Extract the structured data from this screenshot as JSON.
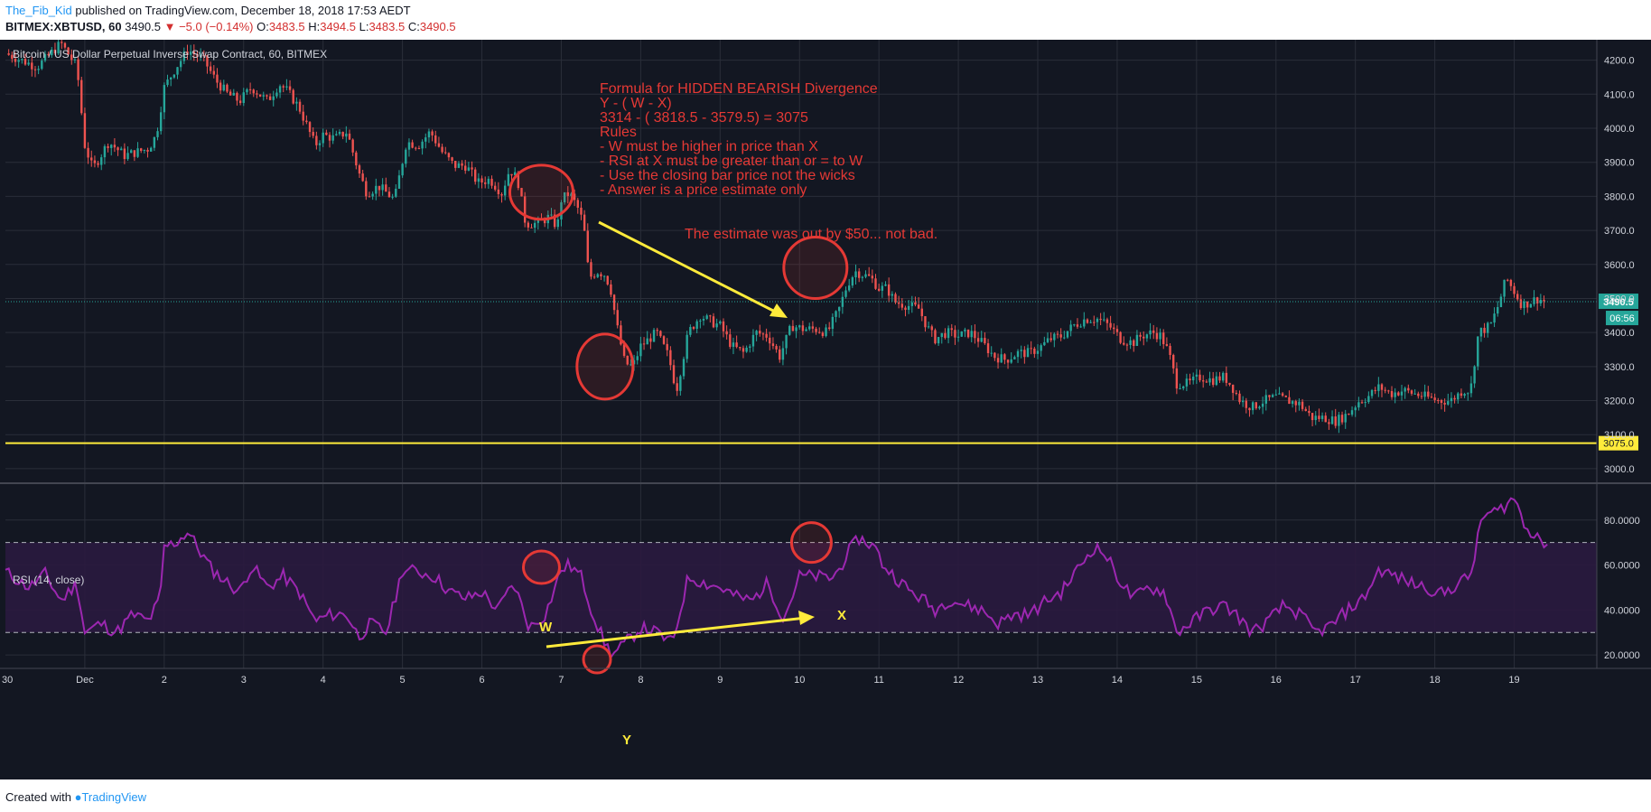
{
  "header": {
    "author": "The_Fib_Kid",
    "published_text": "published on TradingView.com, December 18, 2018 17:53 AEDT",
    "symbol_line": "BITMEX:XBTUSD, 60",
    "last": "3490.5",
    "change": "▼ −5.0 (−0.14%)",
    "o_label": "O:",
    "o_value": "3483.5",
    "h_label": "H:",
    "h_value": "3494.5",
    "l_label": "L:",
    "l_value": "3483.5",
    "c_label": "C:",
    "c_value": "3490.5"
  },
  "footer": {
    "created_with": "Created with",
    "logo_text": "TradingView"
  },
  "colors": {
    "background": "#131722",
    "up": "#26a69a",
    "down": "#ef5350",
    "rsi_line": "#9c27b0",
    "rsi_band": "#2a1a3f",
    "annotation": "#e53935",
    "arrow": "#ffeb3b",
    "support": "#ffeb3b"
  },
  "chart_data": [
    {
      "type": "candlestick",
      "title": "Bitcoin / US Dollar Perpetual Inverse Swap Contract, 60, BITMEX",
      "ylim": [
        2960,
        4260
      ],
      "y_ticks": [
        3000,
        3100,
        3200,
        3300,
        3400,
        3500,
        3600,
        3700,
        3800,
        3900,
        4000,
        4100,
        4200
      ],
      "y_tick_labels": [
        "3000.0",
        "3100.0",
        "3200.0",
        "3300.0",
        "3400.0",
        "3500.0",
        "3600.0",
        "3700.0",
        "3800.0",
        "3900.0",
        "4000.0",
        "4100.0",
        "4200.0"
      ],
      "x_range_days": [
        0,
        20
      ],
      "x_ticks": [
        {
          "day": 1,
          "label": "Dec"
        },
        {
          "day": 2,
          "label": "2"
        },
        {
          "day": 3,
          "label": "3"
        },
        {
          "day": 4,
          "label": "4"
        },
        {
          "day": 5,
          "label": "5"
        },
        {
          "day": 6,
          "label": "6"
        },
        {
          "day": 7,
          "label": "7"
        },
        {
          "day": 8,
          "label": "8"
        },
        {
          "day": 9,
          "label": "9"
        },
        {
          "day": 10,
          "label": "10"
        },
        {
          "day": 11,
          "label": "11"
        },
        {
          "day": 12,
          "label": "12"
        },
        {
          "day": 13,
          "label": "13"
        },
        {
          "day": 14,
          "label": "14"
        },
        {
          "day": 15,
          "label": "15"
        },
        {
          "day": 16,
          "label": "16"
        },
        {
          "day": 17,
          "label": "17"
        },
        {
          "day": 18,
          "label": "18"
        },
        {
          "day": 19,
          "label": "19"
        }
      ],
      "first_tick_label": "30",
      "close_path": [
        [
          0.0,
          4220
        ],
        [
          0.4,
          4180
        ],
        [
          0.7,
          4250
        ],
        [
          0.9,
          4180
        ],
        [
          1.0,
          3950
        ],
        [
          1.1,
          3880
        ],
        [
          1.3,
          3960
        ],
        [
          1.5,
          3920
        ],
        [
          1.8,
          3940
        ],
        [
          1.9,
          3980
        ],
        [
          2.0,
          4120
        ],
        [
          2.15,
          4180
        ],
        [
          2.3,
          4230
        ],
        [
          2.5,
          4200
        ],
        [
          2.65,
          4140
        ],
        [
          2.8,
          4100
        ],
        [
          2.95,
          4080
        ],
        [
          3.1,
          4120
        ],
        [
          3.3,
          4080
        ],
        [
          3.45,
          4130
        ],
        [
          3.55,
          4110
        ],
        [
          3.7,
          4060
        ],
        [
          3.9,
          3950
        ],
        [
          4.0,
          3980
        ],
        [
          4.15,
          3970
        ],
        [
          4.3,
          3990
        ],
        [
          4.45,
          3870
        ],
        [
          4.55,
          3810
        ],
        [
          4.7,
          3830
        ],
        [
          4.9,
          3790
        ],
        [
          5.05,
          3960
        ],
        [
          5.2,
          3950
        ],
        [
          5.35,
          3990
        ],
        [
          5.5,
          3930
        ],
        [
          5.65,
          3890
        ],
        [
          5.8,
          3890
        ],
        [
          5.95,
          3840
        ],
        [
          6.1,
          3850
        ],
        [
          6.25,
          3810
        ],
        [
          6.35,
          3880
        ],
        [
          6.45,
          3850
        ],
        [
          6.55,
          3720
        ],
        [
          6.7,
          3720
        ],
        [
          6.85,
          3740
        ],
        [
          6.95,
          3710
        ],
        [
          7.0,
          3790
        ],
        [
          7.1,
          3810
        ],
        [
          7.2,
          3770
        ],
        [
          7.28,
          3720
        ],
        [
          7.35,
          3560
        ],
        [
          7.45,
          3580
        ],
        [
          7.55,
          3570
        ],
        [
          7.62,
          3530
        ],
        [
          7.7,
          3420
        ],
        [
          7.8,
          3310
        ],
        [
          7.9,
          3300
        ],
        [
          8.0,
          3360
        ],
        [
          8.1,
          3380
        ],
        [
          8.2,
          3400
        ],
        [
          8.35,
          3330
        ],
        [
          8.45,
          3230
        ],
        [
          8.6,
          3400
        ],
        [
          8.75,
          3450
        ],
        [
          8.9,
          3430
        ],
        [
          9.0,
          3420
        ],
        [
          9.15,
          3360
        ],
        [
          9.3,
          3340
        ],
        [
          9.45,
          3400
        ],
        [
          9.6,
          3390
        ],
        [
          9.75,
          3330
        ],
        [
          9.9,
          3420
        ],
        [
          10.05,
          3410
        ],
        [
          10.2,
          3410
        ],
        [
          10.35,
          3400
        ],
        [
          10.5,
          3470
        ],
        [
          10.6,
          3540
        ],
        [
          10.7,
          3580
        ],
        [
          10.8,
          3570
        ],
        [
          10.9,
          3560
        ],
        [
          11.0,
          3530
        ],
        [
          11.1,
          3530
        ],
        [
          11.2,
          3490
        ],
        [
          11.35,
          3480
        ],
        [
          11.5,
          3470
        ],
        [
          11.6,
          3420
        ],
        [
          11.7,
          3380
        ],
        [
          11.85,
          3400
        ],
        [
          12.0,
          3390
        ],
        [
          12.15,
          3400
        ],
        [
          12.3,
          3370
        ],
        [
          12.45,
          3330
        ],
        [
          12.6,
          3320
        ],
        [
          12.75,
          3340
        ],
        [
          12.9,
          3340
        ],
        [
          13.05,
          3360
        ],
        [
          13.15,
          3380
        ],
        [
          13.3,
          3390
        ],
        [
          13.45,
          3420
        ],
        [
          13.6,
          3440
        ],
        [
          13.75,
          3440
        ],
        [
          13.9,
          3420
        ],
        [
          14.05,
          3380
        ],
        [
          14.2,
          3370
        ],
        [
          14.3,
          3390
        ],
        [
          14.45,
          3400
        ],
        [
          14.55,
          3390
        ],
        [
          14.65,
          3340
        ],
        [
          14.75,
          3250
        ],
        [
          14.9,
          3250
        ],
        [
          15.05,
          3270
        ],
        [
          15.2,
          3260
        ],
        [
          15.35,
          3270
        ],
        [
          15.45,
          3240
        ],
        [
          15.55,
          3200
        ],
        [
          15.7,
          3180
        ],
        [
          15.85,
          3200
        ],
        [
          16.0,
          3210
        ],
        [
          16.15,
          3200
        ],
        [
          16.3,
          3190
        ],
        [
          16.45,
          3150
        ],
        [
          16.6,
          3150
        ],
        [
          16.75,
          3140
        ],
        [
          16.9,
          3160
        ],
        [
          17.05,
          3200
        ],
        [
          17.15,
          3210
        ],
        [
          17.3,
          3240
        ],
        [
          17.45,
          3220
        ],
        [
          17.6,
          3230
        ],
        [
          17.75,
          3220
        ],
        [
          17.9,
          3210
        ],
        [
          18.05,
          3200
        ],
        [
          18.2,
          3200
        ],
        [
          18.35,
          3230
        ],
        [
          18.45,
          3230
        ],
        [
          18.55,
          3400
        ],
        [
          18.7,
          3420
        ],
        [
          18.8,
          3480
        ],
        [
          18.9,
          3560
        ],
        [
          19.0,
          3520
        ],
        [
          19.1,
          3480
        ],
        [
          19.2,
          3490
        ],
        [
          19.3,
          3500
        ],
        [
          19.4,
          3490
        ]
      ],
      "last_price_label": "3490.5",
      "countdown_label": "06:56",
      "support_level": 3075,
      "support_label": "3075.0",
      "annotations": {
        "formula_lines": [
          "Formula for HIDDEN BEARISH Divergence",
          "Y - ( W - X)",
          "3314 - ( 3818.5 - 3579.5) = 3075",
          "Rules",
          "- W must be higher in price than X",
          "- RSI at X must be greater than or = to W",
          "- Use the closing bar price not the wicks",
          "- Answer is a price estimate only"
        ],
        "result_note": "The estimate was out by $50... not bad."
      }
    },
    {
      "type": "line",
      "title": "RSI (14, close)",
      "ylim": [
        14,
        96
      ],
      "y_ticks": [
        20,
        40,
        60,
        80
      ],
      "y_tick_labels": [
        "20.0000",
        "40.0000",
        "60.0000",
        "80.0000"
      ],
      "band": [
        30,
        70
      ],
      "rsi_path": [
        [
          0.0,
          57
        ],
        [
          0.3,
          50
        ],
        [
          0.5,
          56
        ],
        [
          0.7,
          44
        ],
        [
          0.9,
          52
        ],
        [
          1.0,
          30
        ],
        [
          1.2,
          34
        ],
        [
          1.4,
          30
        ],
        [
          1.6,
          38
        ],
        [
          1.8,
          35
        ],
        [
          1.95,
          45
        ],
        [
          2.0,
          68
        ],
        [
          2.15,
          70
        ],
        [
          2.3,
          75
        ],
        [
          2.45,
          66
        ],
        [
          2.6,
          58
        ],
        [
          2.8,
          52
        ],
        [
          2.95,
          48
        ],
        [
          3.1,
          60
        ],
        [
          3.3,
          50
        ],
        [
          3.5,
          55
        ],
        [
          3.7,
          48
        ],
        [
          3.9,
          35
        ],
        [
          4.1,
          38
        ],
        [
          4.3,
          38
        ],
        [
          4.45,
          28
        ],
        [
          4.6,
          34
        ],
        [
          4.8,
          30
        ],
        [
          5.0,
          58
        ],
        [
          5.2,
          57
        ],
        [
          5.4,
          55
        ],
        [
          5.6,
          48
        ],
        [
          5.8,
          45
        ],
        [
          6.0,
          48
        ],
        [
          6.2,
          40
        ],
        [
          6.4,
          52
        ],
        [
          6.6,
          32
        ],
        [
          6.8,
          38
        ],
        [
          7.0,
          58
        ],
        [
          7.1,
          60
        ],
        [
          7.25,
          55
        ],
        [
          7.4,
          38
        ],
        [
          7.55,
          25
        ],
        [
          7.65,
          20
        ],
        [
          7.8,
          25
        ],
        [
          8.0,
          32
        ],
        [
          8.2,
          30
        ],
        [
          8.4,
          25
        ],
        [
          8.6,
          55
        ],
        [
          8.8,
          52
        ],
        [
          9.0,
          50
        ],
        [
          9.2,
          46
        ],
        [
          9.4,
          44
        ],
        [
          9.6,
          52
        ],
        [
          9.8,
          36
        ],
        [
          10.0,
          55
        ],
        [
          10.2,
          55
        ],
        [
          10.4,
          54
        ],
        [
          10.5,
          58
        ],
        [
          10.6,
          65
        ],
        [
          10.75,
          72
        ],
        [
          10.85,
          70
        ],
        [
          10.95,
          68
        ],
        [
          11.05,
          60
        ],
        [
          11.2,
          55
        ],
        [
          11.4,
          48
        ],
        [
          11.55,
          45
        ],
        [
          11.7,
          40
        ],
        [
          11.9,
          45
        ],
        [
          12.1,
          42
        ],
        [
          12.3,
          40
        ],
        [
          12.5,
          34
        ],
        [
          12.7,
          38
        ],
        [
          12.9,
          38
        ],
        [
          13.1,
          44
        ],
        [
          13.3,
          48
        ],
        [
          13.5,
          58
        ],
        [
          13.7,
          68
        ],
        [
          13.85,
          65
        ],
        [
          14.0,
          55
        ],
        [
          14.2,
          45
        ],
        [
          14.4,
          50
        ],
        [
          14.6,
          48
        ],
        [
          14.75,
          30
        ],
        [
          14.95,
          35
        ],
        [
          15.15,
          40
        ],
        [
          15.35,
          42
        ],
        [
          15.5,
          38
        ],
        [
          15.7,
          30
        ],
        [
          15.9,
          35
        ],
        [
          16.1,
          42
        ],
        [
          16.3,
          38
        ],
        [
          16.5,
          30
        ],
        [
          16.7,
          33
        ],
        [
          16.9,
          40
        ],
        [
          17.1,
          45
        ],
        [
          17.3,
          58
        ],
        [
          17.5,
          55
        ],
        [
          17.7,
          52
        ],
        [
          17.9,
          50
        ],
        [
          18.1,
          47
        ],
        [
          18.3,
          52
        ],
        [
          18.45,
          55
        ],
        [
          18.6,
          82
        ],
        [
          18.8,
          84
        ],
        [
          19.0,
          90
        ],
        [
          19.15,
          76
        ],
        [
          19.3,
          74
        ],
        [
          19.45,
          64
        ]
      ],
      "labels": {
        "w": "W",
        "x": "X",
        "y": "Y"
      }
    }
  ]
}
